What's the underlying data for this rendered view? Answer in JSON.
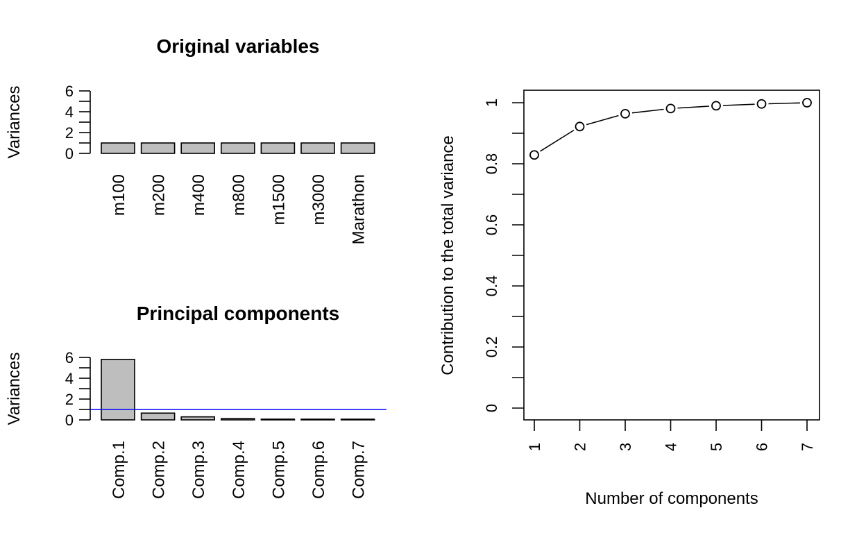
{
  "chart_data": [
    {
      "type": "bar",
      "title": "Original variables",
      "ylabel": "Variances",
      "categories": [
        "m100",
        "m200",
        "m400",
        "m800",
        "m1500",
        "m3000",
        "Marathon"
      ],
      "values": [
        1,
        1,
        1,
        1,
        1,
        1,
        1
      ],
      "ylim": [
        0,
        6
      ],
      "yticks": [
        "0",
        "2",
        "4",
        "6"
      ]
    },
    {
      "type": "bar",
      "title": "Principal components",
      "ylabel": "Variances",
      "categories": [
        "Comp.1",
        "Comp.2",
        "Comp.3",
        "Comp.4",
        "Comp.5",
        "Comp.6",
        "Comp.7"
      ],
      "values": [
        5.81,
        0.65,
        0.29,
        0.12,
        0.07,
        0.04,
        0.02
      ],
      "ylim": [
        0,
        6
      ],
      "yticks": [
        "0",
        "2",
        "4",
        "6"
      ],
      "reference_line": {
        "y": 1,
        "color": "#0000ff"
      }
    },
    {
      "type": "line",
      "title": "",
      "xlabel": "Number of components",
      "ylabel": "Contribution to the total variance",
      "x": [
        1,
        2,
        3,
        4,
        5,
        6,
        7
      ],
      "values": [
        0.829,
        0.922,
        0.964,
        0.981,
        0.99,
        0.996,
        1.0
      ],
      "xticks": [
        "1",
        "2",
        "3",
        "4",
        "5",
        "6",
        "7"
      ],
      "yticks": [
        "0",
        "0.2",
        "0.4",
        "0.6",
        "0.8",
        "1"
      ],
      "ylim": [
        0,
        1
      ],
      "markers": "open-circle"
    }
  ]
}
